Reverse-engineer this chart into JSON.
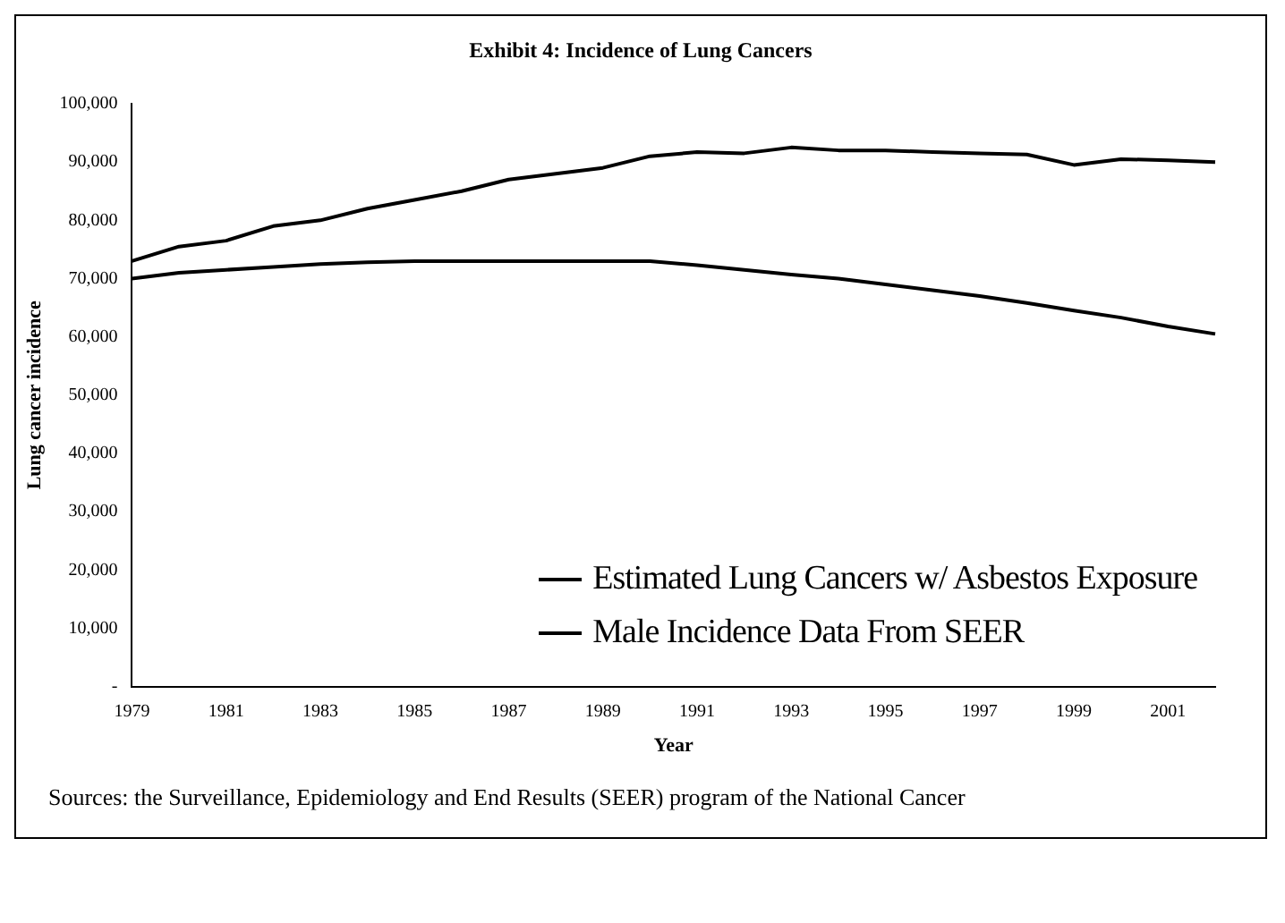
{
  "chart_data": {
    "type": "line",
    "title": "Exhibit 4: Incidence of Lung Cancers",
    "xlabel": "Year",
    "ylabel": "Lung cancer incidence",
    "categories": [
      "1979",
      null,
      "1981",
      null,
      "1983",
      null,
      "1985",
      null,
      "1987",
      null,
      "1989",
      null,
      "1991",
      null,
      "1993",
      null,
      "1995",
      null,
      "1997",
      null,
      "1999",
      null,
      "2001",
      null
    ],
    "series": [
      {
        "name": "Estimated Lung Cancers w/ Asbestos Exposure",
        "color": "#000000",
        "values": [
          70000,
          71000,
          71500,
          72000,
          72500,
          72800,
          73000,
          73000,
          73000,
          73000,
          73000,
          73000,
          72300,
          71500,
          70700,
          70000,
          69000,
          68000,
          67000,
          65800,
          64500,
          63300,
          61800,
          60500
        ]
      },
      {
        "name": "Male Incidence Data From SEER",
        "color": "#000000",
        "values": [
          73000,
          75500,
          76500,
          79000,
          80000,
          82000,
          83500,
          85000,
          87000,
          88000,
          89000,
          91000,
          91700,
          91500,
          92500,
          92000,
          92000,
          91700,
          91500,
          91300,
          89500,
          90500,
          90300,
          90000
        ]
      }
    ],
    "ylim": [
      0,
      100000
    ],
    "yticks": [
      {
        "value": 0,
        "label": "-"
      },
      {
        "value": 10000,
        "label": "10,000"
      },
      {
        "value": 20000,
        "label": "20,000"
      },
      {
        "value": 30000,
        "label": "30,000"
      },
      {
        "value": 40000,
        "label": "40,000"
      },
      {
        "value": 50000,
        "label": "50,000"
      },
      {
        "value": 60000,
        "label": "60,000"
      },
      {
        "value": 70000,
        "label": "70,000"
      },
      {
        "value": 80000,
        "label": "80,000"
      },
      {
        "value": 90000,
        "label": "90,000"
      },
      {
        "value": 100000,
        "label": "100,000"
      }
    ],
    "grid": false,
    "legend": "bottom right",
    "marker": "none",
    "line_style": "solid",
    "annotations": [
      "Sources: the Surveillance, Epidemiology and End Results (SEER) program of the National Cancer"
    ]
  }
}
